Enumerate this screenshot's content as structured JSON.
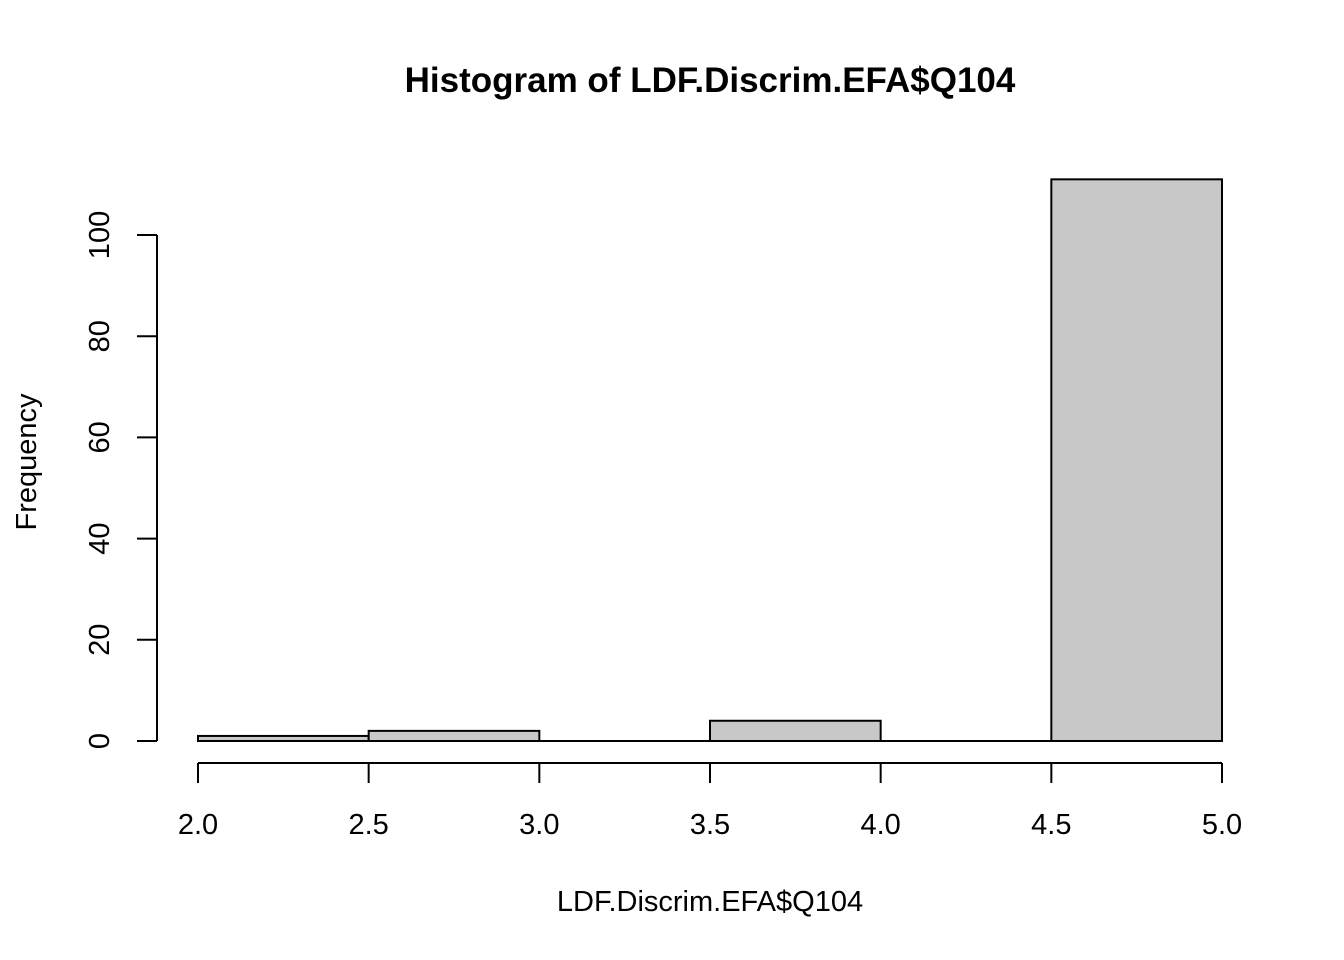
{
  "chart_data": {
    "type": "bar",
    "title": "Histogram of LDF.Discrim.EFA$Q104",
    "xlabel": "LDF.Discrim.EFA$Q104",
    "ylabel": "Frequency",
    "bins": [
      {
        "start": 2.0,
        "end": 2.5,
        "count": 1
      },
      {
        "start": 2.5,
        "end": 3.0,
        "count": 2
      },
      {
        "start": 3.0,
        "end": 3.5,
        "count": 0
      },
      {
        "start": 3.5,
        "end": 4.0,
        "count": 4
      },
      {
        "start": 4.0,
        "end": 4.5,
        "count": 0
      },
      {
        "start": 4.5,
        "end": 5.0,
        "count": 111
      }
    ],
    "xlim": [
      2.0,
      5.0
    ],
    "ylim": [
      0,
      111
    ],
    "x_ticks": [
      "2.0",
      "2.5",
      "3.0",
      "3.5",
      "4.0",
      "4.5",
      "5.0"
    ],
    "y_ticks": [
      "0",
      "20",
      "40",
      "60",
      "80",
      "100"
    ],
    "grid": false,
    "colors": {
      "bar_fill": "#c8c8c8",
      "bar_stroke": "#000000",
      "background": "#ffffff"
    }
  }
}
